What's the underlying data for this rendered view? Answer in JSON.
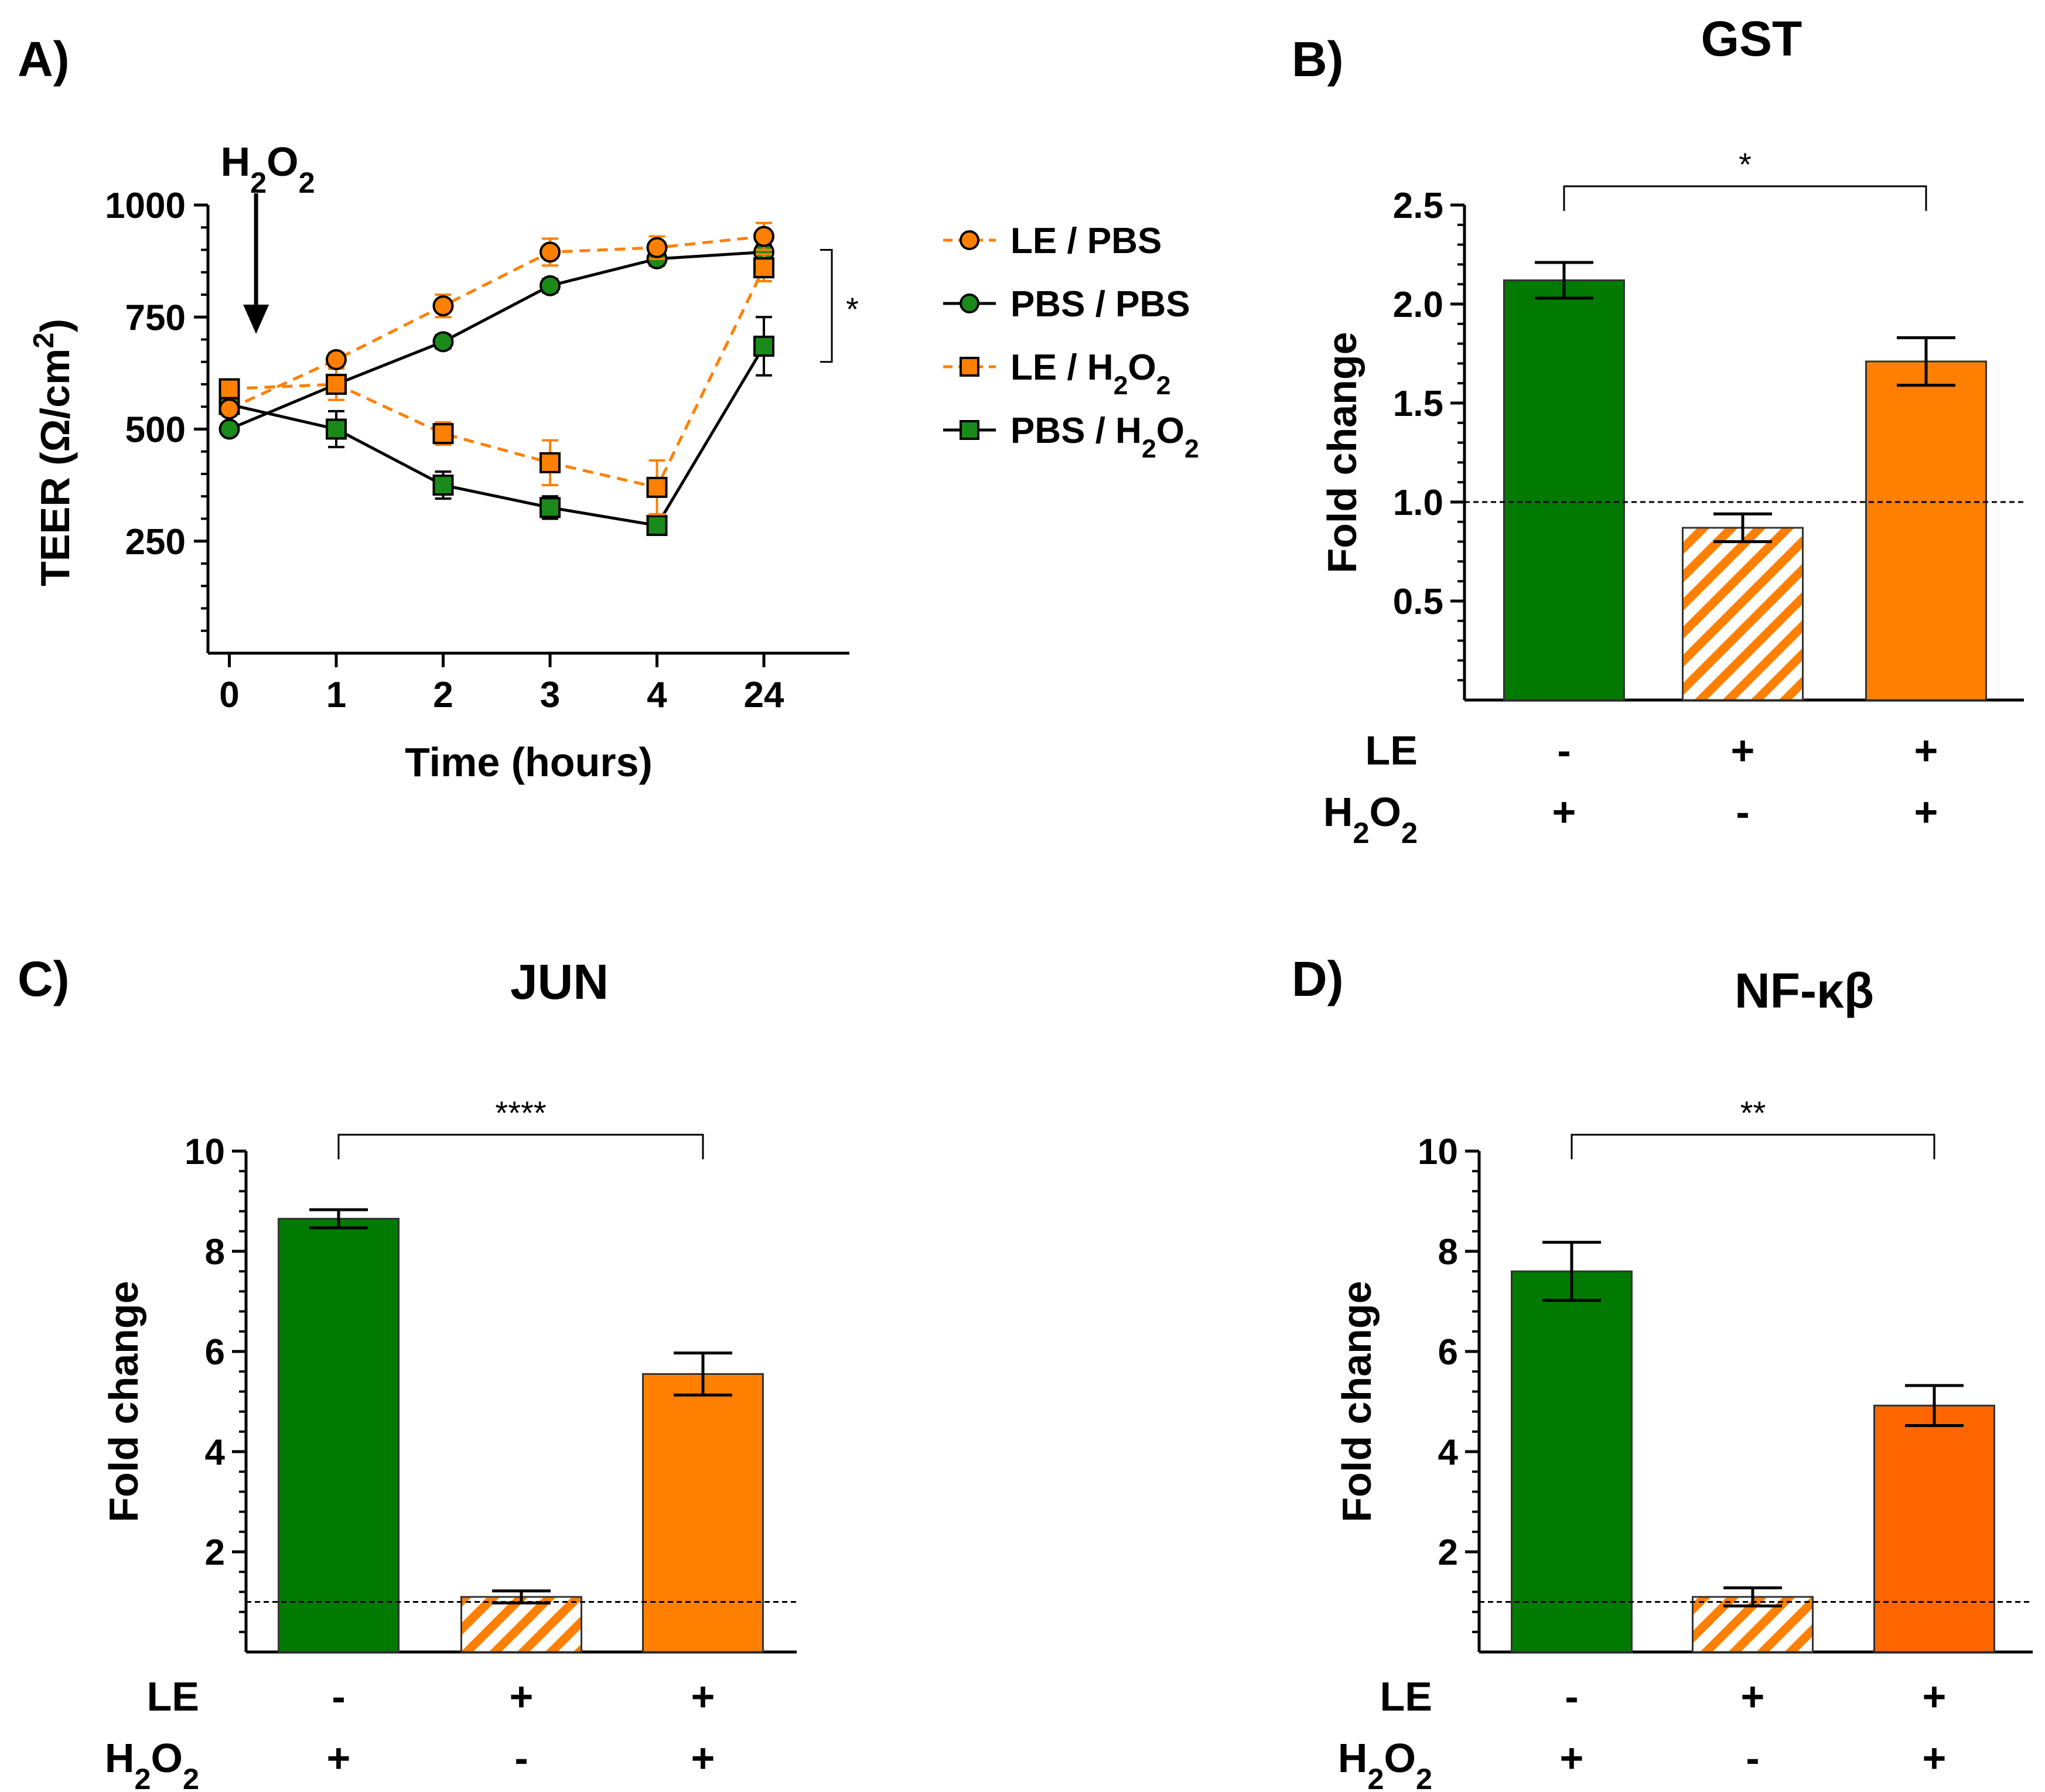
{
  "panels": {
    "a": {
      "label": "A)"
    },
    "b": {
      "label": "B)"
    },
    "c": {
      "label": "C)"
    },
    "d": {
      "label": "D)"
    }
  },
  "colors": {
    "orange": "#FF8000",
    "orange_dark": "#FF6600",
    "green": "#007A00",
    "marker_green": "#1A8A1A",
    "black": "#000000"
  },
  "chart_data": [
    {
      "id": "a",
      "type": "line",
      "title": "",
      "annotation": "H2O2",
      "annotation_at_x": 0.25,
      "xlabel": "Time (hours)",
      "ylabel": "TEER (Ω/cm2)",
      "ylabel_parts": {
        "main": "TEER (Ω/cm",
        "sup": "2",
        "end": ")"
      },
      "x_ticks": [
        "0",
        "1",
        "2",
        "3",
        "4",
        "24"
      ],
      "x_range": [
        -0.2,
        5.8
      ],
      "ylim": [
        0,
        1000
      ],
      "y_ticks": [
        250,
        500,
        750,
        1000
      ],
      "y_minor_step": 50,
      "legend_position": "right",
      "significance": "*",
      "significance_between": [
        "LE / H2O2",
        "PBS / H2O2"
      ],
      "significance_range": [
        650,
        900
      ],
      "series": [
        {
          "name": "LE / PBS",
          "color": "#FF8000",
          "dash": true,
          "marker": "circle",
          "values": [
            545,
            655,
            775,
            895,
            905,
            930
          ],
          "errors": [
            15,
            15,
            25,
            30,
            25,
            30
          ]
        },
        {
          "name": "PBS / PBS",
          "color": "#000000",
          "dash": false,
          "marker": "circle",
          "values": [
            500,
            600,
            695,
            820,
            880,
            895
          ],
          "errors": [
            10,
            10,
            15,
            15,
            15,
            15
          ]
        },
        {
          "name": "LE / H2O2",
          "color": "#FF8000",
          "dash": true,
          "marker": "square",
          "values": [
            590,
            600,
            490,
            425,
            370,
            860
          ],
          "errors": [
            15,
            35,
            25,
            50,
            60,
            30
          ]
        },
        {
          "name": "PBS / H2O2",
          "color": "#000000",
          "dash": false,
          "marker": "square",
          "values": [
            555,
            500,
            375,
            325,
            285,
            685
          ],
          "errors": [
            15,
            40,
            30,
            25,
            15,
            65
          ]
        }
      ]
    },
    {
      "id": "b",
      "type": "bar",
      "title": "GST",
      "ylabel": "Fold change",
      "ylim": [
        0,
        2.5
      ],
      "y_ticks": [
        0.5,
        1.0,
        1.5,
        2.0,
        2.5
      ],
      "y_tick_labels": [
        "0.5",
        "1.0",
        "1.5",
        "2.0",
        "2.5"
      ],
      "y_minor_step": 0.1,
      "reference_line": 1.0,
      "categories": [
        "PBS / H2O2",
        "LE / PBS",
        "LE / H2O2"
      ],
      "values": [
        2.12,
        0.87,
        1.71
      ],
      "errors": [
        0.09,
        0.07,
        0.12
      ],
      "hatched": [
        false,
        true,
        false
      ],
      "bar_colors": [
        "#007A00",
        "#FF8000",
        "#FF8000"
      ],
      "conditions": {
        "LE": [
          "-",
          "+",
          "+"
        ],
        "H2O2": [
          "+",
          "-",
          "+"
        ]
      },
      "significance": {
        "label": "*",
        "between": [
          0,
          2
        ]
      }
    },
    {
      "id": "c",
      "type": "bar",
      "title": "JUN",
      "ylabel": "Fold change",
      "ylim": [
        0,
        10
      ],
      "y_ticks": [
        2,
        4,
        6,
        8,
        10
      ],
      "y_tick_labels": [
        "2",
        "4",
        "6",
        "8",
        "10"
      ],
      "y_minor_step": 0.4,
      "reference_line": 1.0,
      "categories": [
        "PBS / H2O2",
        "LE / PBS",
        "LE / H2O2"
      ],
      "values": [
        8.65,
        1.1,
        5.55
      ],
      "errors": [
        0.18,
        0.12,
        0.42
      ],
      "hatched": [
        false,
        true,
        false
      ],
      "bar_colors": [
        "#007A00",
        "#FF8000",
        "#FF8000"
      ],
      "conditions": {
        "LE": [
          "-",
          "+",
          "+"
        ],
        "H2O2": [
          "+",
          "-",
          "+"
        ]
      },
      "significance": {
        "label": "****",
        "between": [
          0,
          2
        ]
      }
    },
    {
      "id": "d",
      "type": "bar",
      "title": "NF-κβ",
      "ylabel": "Fold change",
      "ylim": [
        0,
        10
      ],
      "y_ticks": [
        2,
        4,
        6,
        8,
        10
      ],
      "y_tick_labels": [
        "2",
        "4",
        "6",
        "8",
        "10"
      ],
      "y_minor_step": 0.4,
      "reference_line": 1.0,
      "categories": [
        "PBS / H2O2",
        "LE / PBS",
        "LE / H2O2"
      ],
      "values": [
        7.6,
        1.1,
        4.92
      ],
      "errors": [
        0.58,
        0.18,
        0.4
      ],
      "hatched": [
        false,
        true,
        false
      ],
      "bar_colors": [
        "#007A00",
        "#FF8000",
        "#FF6600"
      ],
      "conditions": {
        "LE": [
          "-",
          "+",
          "+"
        ],
        "H2O2": [
          "+",
          "-",
          "+"
        ]
      },
      "significance": {
        "label": "**",
        "between": [
          0,
          2
        ]
      }
    }
  ]
}
